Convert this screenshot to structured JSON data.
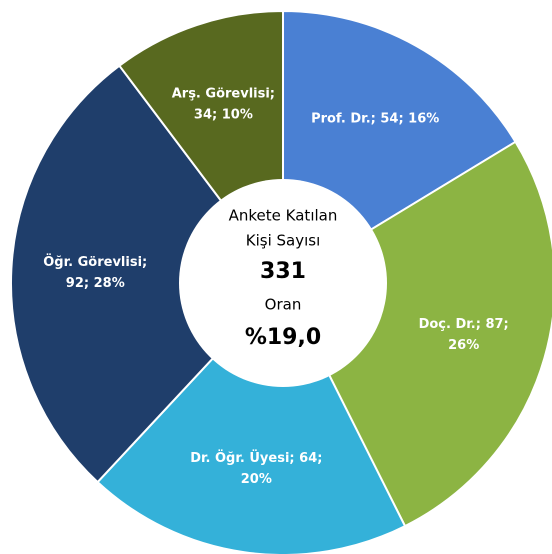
{
  "chart_data": {
    "type": "donut",
    "values": [
      54,
      87,
      64,
      92,
      34
    ],
    "value_labels": [
      [
        "Prof. Dr.; 54; 16%"
      ],
      [
        "Doç. Dr.; 87;",
        "26%"
      ],
      [
        "Dr. Öğr. Üyesi; 64;",
        "20%"
      ],
      [
        "Öğr. Görevlisi;",
        "92; 28%"
      ],
      [
        "Arş. Görevlisi;",
        "34; 10%"
      ]
    ],
    "colors": [
      "#4a80d3",
      "#8cb443",
      "#34b1d9",
      "#1f3e6b",
      "#58691f"
    ],
    "center": {
      "lines": [
        "Ankete Katılan",
        "Kişi Sayısı"
      ],
      "total": 331,
      "rate_title": "Oran",
      "rate": "%19,0"
    }
  }
}
